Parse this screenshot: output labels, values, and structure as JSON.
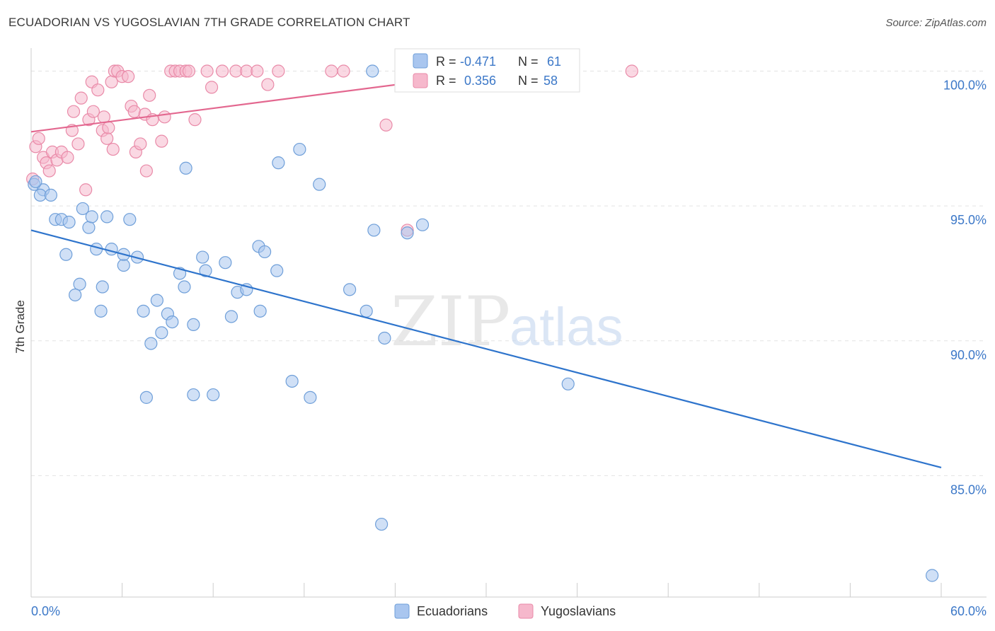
{
  "title": "ECUADORIAN VS YUGOSLAVIAN 7TH GRADE CORRELATION CHART",
  "source": "Source: ZipAtlas.com",
  "watermark": {
    "zip": "ZIP",
    "atlas": "atlas"
  },
  "colors": {
    "blue_fill": "#a9c6ef",
    "blue_stroke": "#6f9fd9",
    "blue_line": "#2e74cc",
    "pink_fill": "#f6b8cc",
    "pink_stroke": "#e98aa8",
    "pink_line": "#e3678f",
    "value_text": "#3c78c8",
    "grid": "#e3e3e3"
  },
  "legend": {
    "rows": [
      {
        "r_label": "R =",
        "r_value": "-0.471",
        "n_label": "N =",
        "n_value": "61"
      },
      {
        "r_label": "R =",
        "r_value": "0.356",
        "n_label": "N =",
        "n_value": "58"
      }
    ]
  },
  "chart_data": {
    "type": "scatter",
    "title": "ECUADORIAN VS YUGOSLAVIAN 7TH GRADE CORRELATION CHART",
    "xlabel": "",
    "ylabel": "7th Grade",
    "xlim": [
      0,
      60
    ],
    "ylim": [
      80.5,
      100.8
    ],
    "x_tick_labels": [
      "0.0%",
      "60.0%"
    ],
    "y_ticks": [
      85,
      90,
      95,
      100
    ],
    "y_tick_labels": [
      "85.0%",
      "90.0%",
      "95.0%",
      "100.0%"
    ],
    "grid": true,
    "legend_position": "top-center",
    "series": [
      {
        "name": "Ecuadorians",
        "R": -0.471,
        "N": 61,
        "trend": {
          "x": [
            0,
            60
          ],
          "y": [
            94.1,
            85.3
          ]
        },
        "points": [
          [
            0.2,
            95.8
          ],
          [
            0.8,
            95.6
          ],
          [
            0.6,
            95.4
          ],
          [
            1.3,
            95.4
          ],
          [
            1.6,
            94.5
          ],
          [
            2.0,
            94.5
          ],
          [
            2.5,
            94.4
          ],
          [
            3.4,
            94.9
          ],
          [
            3.8,
            94.2
          ],
          [
            4.0,
            94.6
          ],
          [
            5.0,
            94.6
          ],
          [
            6.5,
            94.5
          ],
          [
            4.3,
            93.4
          ],
          [
            5.3,
            93.4
          ],
          [
            6.1,
            92.8
          ],
          [
            6.1,
            93.2
          ],
          [
            7.0,
            93.1
          ],
          [
            2.3,
            93.2
          ],
          [
            3.2,
            92.1
          ],
          [
            2.9,
            91.7
          ],
          [
            4.7,
            92.0
          ],
          [
            7.4,
            91.1
          ],
          [
            8.3,
            91.5
          ],
          [
            4.6,
            91.1
          ],
          [
            9.0,
            91.0
          ],
          [
            9.8,
            92.5
          ],
          [
            10.1,
            92.0
          ],
          [
            11.3,
            93.1
          ],
          [
            11.5,
            92.6
          ],
          [
            12.8,
            92.9
          ],
          [
            13.6,
            91.8
          ],
          [
            14.2,
            91.9
          ],
          [
            13.2,
            90.9
          ],
          [
            9.3,
            90.7
          ],
          [
            10.7,
            90.6
          ],
          [
            8.6,
            90.3
          ],
          [
            7.9,
            89.9
          ],
          [
            7.6,
            87.9
          ],
          [
            10.7,
            88.0
          ],
          [
            12.0,
            88.0
          ],
          [
            15.0,
            93.5
          ],
          [
            15.4,
            93.3
          ],
          [
            16.2,
            92.6
          ],
          [
            15.1,
            91.1
          ],
          [
            10.2,
            96.4
          ],
          [
            16.3,
            96.6
          ],
          [
            17.7,
            97.1
          ],
          [
            19.0,
            95.8
          ],
          [
            17.2,
            88.5
          ],
          [
            18.4,
            87.9
          ],
          [
            21.0,
            91.9
          ],
          [
            22.1,
            91.1
          ],
          [
            22.6,
            94.1
          ],
          [
            24.8,
            94.0
          ],
          [
            25.8,
            94.3
          ],
          [
            23.3,
            90.1
          ],
          [
            22.5,
            100.0
          ],
          [
            35.4,
            88.4
          ],
          [
            23.1,
            83.2
          ],
          [
            59.4,
            81.3
          ],
          [
            0.3,
            95.9
          ]
        ]
      },
      {
        "name": "Yugoslavians",
        "R": 0.356,
        "N": 58,
        "trend": {
          "x": [
            0,
            31
          ],
          "y": [
            97.75,
            100.0
          ]
        },
        "points": [
          [
            0.1,
            96.0
          ],
          [
            0.3,
            97.2
          ],
          [
            0.5,
            97.5
          ],
          [
            0.8,
            96.8
          ],
          [
            1.0,
            96.6
          ],
          [
            1.2,
            96.3
          ],
          [
            1.4,
            97.0
          ],
          [
            1.7,
            96.7
          ],
          [
            2.0,
            97.0
          ],
          [
            2.4,
            96.8
          ],
          [
            2.7,
            97.8
          ],
          [
            2.8,
            98.5
          ],
          [
            3.1,
            97.3
          ],
          [
            3.3,
            99.0
          ],
          [
            3.6,
            95.6
          ],
          [
            3.8,
            98.2
          ],
          [
            4.0,
            99.6
          ],
          [
            4.1,
            98.5
          ],
          [
            4.4,
            99.3
          ],
          [
            4.7,
            97.8
          ],
          [
            4.8,
            98.3
          ],
          [
            5.0,
            97.5
          ],
          [
            5.1,
            97.9
          ],
          [
            5.3,
            99.6
          ],
          [
            5.4,
            97.1
          ],
          [
            5.5,
            100.0
          ],
          [
            5.7,
            100.0
          ],
          [
            6.0,
            99.8
          ],
          [
            6.4,
            99.8
          ],
          [
            6.6,
            98.7
          ],
          [
            6.8,
            98.5
          ],
          [
            6.9,
            97.0
          ],
          [
            7.2,
            97.3
          ],
          [
            7.5,
            98.4
          ],
          [
            7.6,
            96.3
          ],
          [
            7.8,
            99.1
          ],
          [
            8.0,
            98.2
          ],
          [
            8.6,
            97.4
          ],
          [
            8.8,
            98.3
          ],
          [
            9.2,
            100.0
          ],
          [
            9.5,
            100.0
          ],
          [
            9.8,
            100.0
          ],
          [
            10.2,
            100.0
          ],
          [
            10.4,
            100.0
          ],
          [
            10.8,
            98.2
          ],
          [
            11.6,
            100.0
          ],
          [
            11.9,
            99.4
          ],
          [
            12.6,
            100.0
          ],
          [
            13.5,
            100.0
          ],
          [
            14.2,
            100.0
          ],
          [
            14.9,
            100.0
          ],
          [
            15.6,
            99.5
          ],
          [
            16.3,
            100.0
          ],
          [
            19.8,
            100.0
          ],
          [
            20.6,
            100.0
          ],
          [
            23.4,
            98.0
          ],
          [
            24.8,
            94.1
          ],
          [
            39.6,
            100.0
          ]
        ]
      }
    ]
  }
}
